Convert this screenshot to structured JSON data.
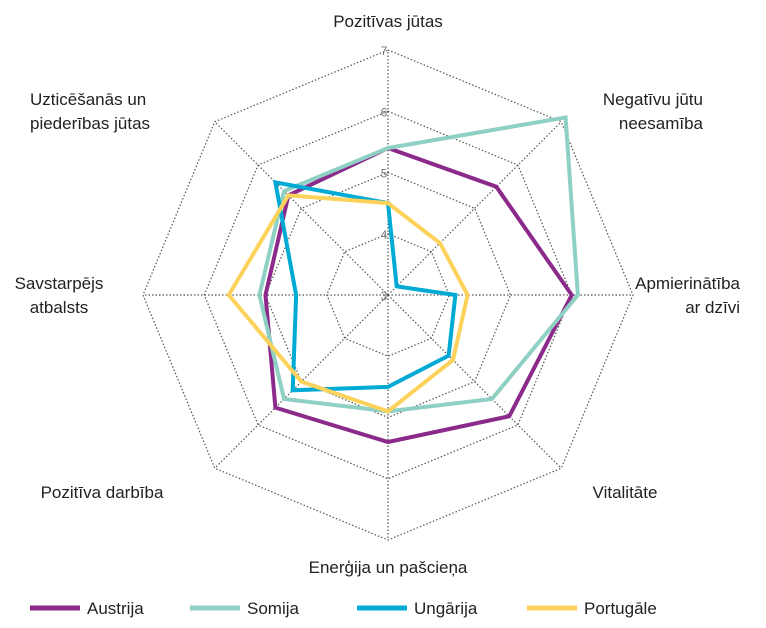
{
  "chart_data": {
    "type": "radar",
    "categories": [
      "Pozitīvas jūtas",
      "Negatīvu jūtu neesamība",
      "Apmierinātība ar dzīvi",
      "Vitalitāte",
      "Enerģija un pašcieņa",
      "Pozitīva darbība",
      "Savstarpējs atbalsts",
      "Uzticēšanās un piederības jūtas"
    ],
    "rlim": [
      3,
      7
    ],
    "rticks": [
      3,
      4,
      5,
      6,
      7
    ],
    "grid": true,
    "series": [
      {
        "name": "Austrija",
        "color": "#8b2a8b",
        "values": [
          5.4,
          5.5,
          6.0,
          5.8,
          5.4,
          5.6,
          5.0,
          5.3
        ]
      },
      {
        "name": "Somija",
        "color": "#8fd0c4",
        "values": [
          5.4,
          7.1,
          6.1,
          5.4,
          4.9,
          5.4,
          5.1,
          5.4
        ]
      },
      {
        "name": "Ungārija",
        "color": "#00aad4",
        "values": [
          4.5,
          3.2,
          4.1,
          4.4,
          4.5,
          5.2,
          4.5,
          5.6
        ]
      },
      {
        "name": "Portugāle",
        "color": "#fcd25a",
        "values": [
          4.5,
          4.2,
          4.3,
          4.5,
          4.9,
          5.0,
          5.6,
          5.3
        ]
      }
    ]
  }
}
